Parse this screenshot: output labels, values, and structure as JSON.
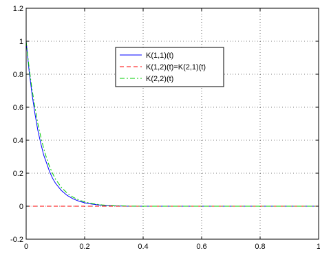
{
  "chart_data": {
    "type": "line",
    "title": "",
    "xlabel": "",
    "ylabel": "",
    "xlim": [
      0,
      1
    ],
    "ylim": [
      -0.2,
      1.2
    ],
    "xticks": [
      0,
      0.2,
      0.4,
      0.6,
      0.8,
      1
    ],
    "xtick_labels": [
      "0",
      "0.2",
      "0.4",
      "0.6",
      "0.8",
      "1"
    ],
    "yticks": [
      -0.2,
      0,
      0.2,
      0.4,
      0.6,
      0.8,
      1,
      1.2
    ],
    "ytick_labels": [
      "-0.2",
      "0",
      "0.2",
      "0.4",
      "0.6",
      "0.8",
      "1",
      "1.2"
    ],
    "grid": true,
    "legend_position": "top-center",
    "x": [
      0,
      0.01,
      0.02,
      0.03,
      0.04,
      0.05,
      0.06,
      0.07,
      0.08,
      0.09,
      0.1,
      0.12,
      0.14,
      0.16,
      0.18,
      0.2,
      0.22,
      0.24,
      0.26,
      0.28,
      0.3,
      0.35,
      0.4,
      0.5,
      0.6,
      0.7,
      0.8,
      0.9,
      1
    ],
    "series": [
      {
        "name": "K(1,1)(t)",
        "color": "#0000ff",
        "dash": "solid",
        "values": [
          1.0,
          0.82,
          0.68,
          0.56,
          0.46,
          0.38,
          0.31,
          0.26,
          0.21,
          0.17,
          0.14,
          0.096,
          0.066,
          0.045,
          0.031,
          0.021,
          0.014,
          0.009,
          0.006,
          0.004,
          0.002,
          0.0,
          0.0,
          0.0,
          0.0,
          0.0,
          0.0,
          0.0,
          0.0
        ]
      },
      {
        "name": "K(1,2)(t)=K(2,1)(t)",
        "color": "#ff0000",
        "dash": "dashed",
        "values": [
          0,
          0,
          0,
          0,
          0,
          0,
          0,
          0,
          0,
          0,
          0,
          0,
          0,
          0,
          0,
          0,
          0,
          0,
          0,
          0,
          0,
          0,
          0,
          0,
          0,
          0,
          0,
          0,
          0
        ]
      },
      {
        "name": "K(2,2)(t)",
        "color": "#00cc00",
        "dash": "dashdot",
        "values": [
          1.0,
          0.84,
          0.71,
          0.6,
          0.5,
          0.42,
          0.35,
          0.29,
          0.24,
          0.2,
          0.165,
          0.115,
          0.08,
          0.055,
          0.038,
          0.026,
          0.018,
          0.012,
          0.008,
          0.005,
          0.003,
          0.001,
          0.0,
          0.0,
          0.0,
          0.0,
          0.0,
          0.0,
          0.0
        ]
      }
    ]
  }
}
